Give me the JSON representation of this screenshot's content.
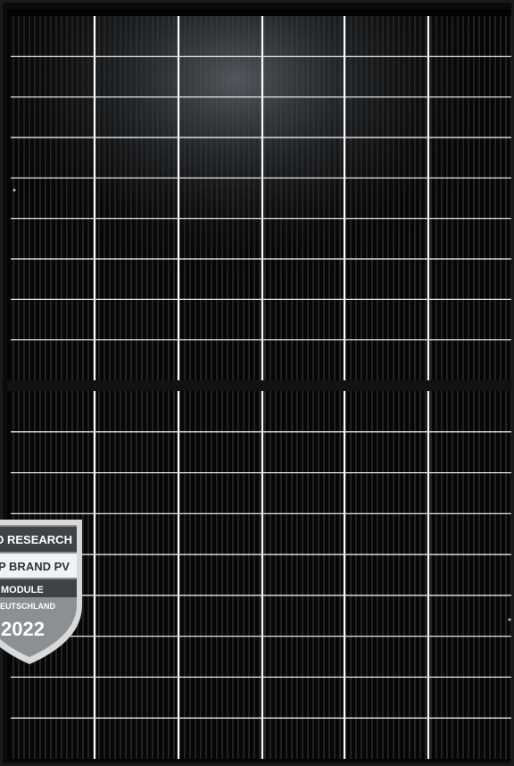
{
  "image": {
    "subject": "solar-panel",
    "colors": {
      "frame": "#0a0a0a",
      "cell": "#050505",
      "cell_highlight": "#3a3f44",
      "busbar": "#ffffff",
      "finger": "#6a6a6a"
    }
  },
  "badge": {
    "line1": "D RESEARCH",
    "line2": "P BRAND PV",
    "line3": "MODULE",
    "line4": "EUTSCHLAND",
    "year": "2022",
    "colors": {
      "shield_outer": "#d7d9db",
      "shield_inner": "#8c9094",
      "band_dark": "#3f4347",
      "band_mid": "#6d7175",
      "text_light": "#ffffff",
      "text_dark": "#2f3337"
    }
  }
}
